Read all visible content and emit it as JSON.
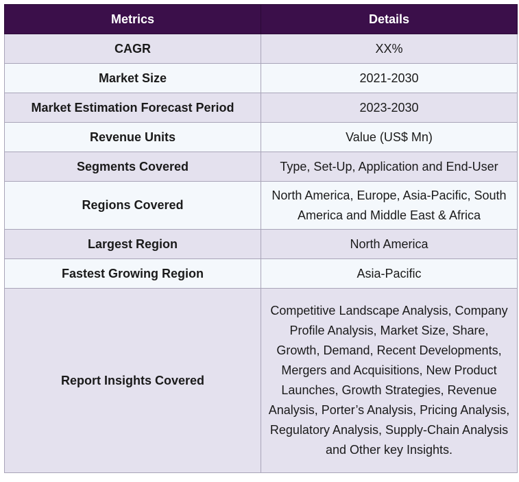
{
  "header": {
    "metrics": "Metrics",
    "details": "Details"
  },
  "rows": [
    {
      "metric": "CAGR",
      "details": "XX%"
    },
    {
      "metric": "Market Size",
      "details": "2021-2030"
    },
    {
      "metric": "Market Estimation Forecast Period",
      "details": "2023-2030"
    },
    {
      "metric": "Revenue Units",
      "details": "Value (US$ Mn)"
    },
    {
      "metric": "Segments Covered",
      "details": "Type, Set-Up, Application and End-User"
    },
    {
      "metric": "Regions Covered",
      "details": "North America, Europe, Asia-Pacific, South America and Middle East & Africa"
    },
    {
      "metric": "Largest Region",
      "details": "North America"
    },
    {
      "metric": "Fastest Growing Region",
      "details": "Asia-Pacific"
    },
    {
      "metric": "Report Insights Covered",
      "details": "Competitive Landscape Analysis, Company Profile Analysis, Market Size, Share, Growth, Demand, Recent Developments, Mergers and Acquisitions, New Product Launches, Growth Strategies, Revenue Analysis, Porter’s Analysis, Pricing Analysis, Regulatory Analysis, Supply-Chain Analysis and Other key Insights."
    }
  ],
  "colors": {
    "header_bg": "#3b0f4a",
    "row_odd_bg": "#e4e1ee",
    "row_even_bg": "#f4f8fc",
    "border": "#a8a4b8"
  }
}
